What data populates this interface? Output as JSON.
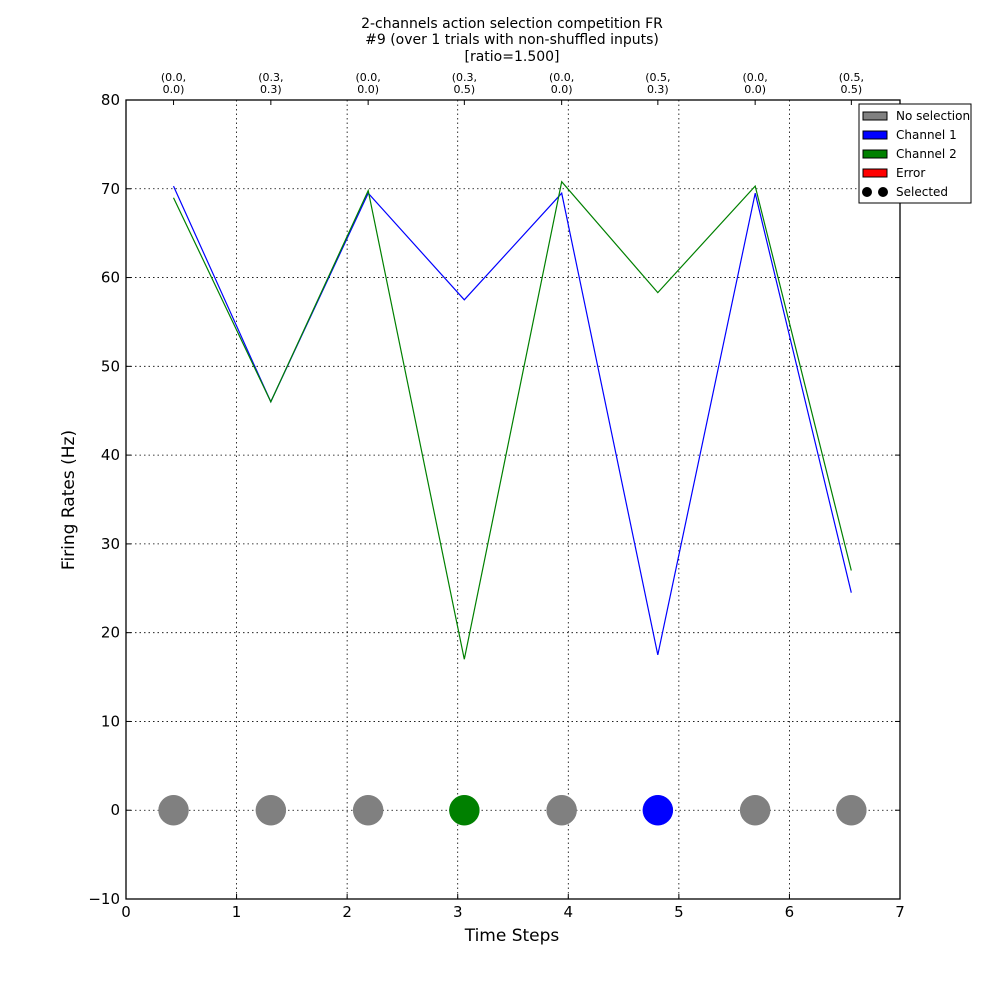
{
  "chart_data": {
    "type": "line",
    "title_lines": [
      "2-channels action selection competition FR",
      "#9 (over 1 trials with non-shuffled inputs)",
      "[ratio=1.500]"
    ],
    "xlabel": "Time Steps",
    "ylabel": "Firing Rates (Hz)",
    "xlim": [
      0,
      7
    ],
    "ylim": [
      -10,
      80
    ],
    "xticks": [
      0,
      1,
      2,
      3,
      4,
      5,
      6,
      7
    ],
    "yticks": [
      -10,
      0,
      10,
      20,
      30,
      40,
      50,
      60,
      70,
      80
    ],
    "ytick_labels": [
      "−10",
      "0",
      "10",
      "20",
      "30",
      "40",
      "50",
      "60",
      "70",
      "80"
    ],
    "grid": true,
    "legend_position": "top-right",
    "x": [
      0.43,
      1.31,
      2.19,
      3.06,
      3.94,
      4.81,
      5.69,
      6.56
    ],
    "top_tick_labels": [
      [
        "(0.0,",
        "0.0)"
      ],
      [
        "(0.3,",
        "0.3)"
      ],
      [
        "(0.0,",
        "0.0)"
      ],
      [
        "(0.3,",
        "0.5)"
      ],
      [
        "(0.0,",
        "0.0)"
      ],
      [
        "(0.5,",
        "0.3)"
      ],
      [
        "(0.0,",
        "0.0)"
      ],
      [
        "(0.5,",
        "0.5)"
      ]
    ],
    "series": [
      {
        "name": "Channel 1",
        "color": "#0000ff",
        "values": [
          70.3,
          46.0,
          69.5,
          57.5,
          69.5,
          17.5,
          69.5,
          24.5
        ]
      },
      {
        "name": "Channel 2",
        "color": "#008000",
        "values": [
          69.0,
          46.0,
          69.8,
          17.0,
          70.8,
          58.3,
          70.3,
          27.0
        ]
      }
    ],
    "selection": {
      "y": 0,
      "colors": [
        "#808080",
        "#808080",
        "#808080",
        "#008000",
        "#808080",
        "#0000ff",
        "#808080",
        "#808080"
      ]
    },
    "legend": [
      {
        "label": "No selection",
        "color": "#808080",
        "kind": "rect"
      },
      {
        "label": "Channel 1",
        "color": "#0000ff",
        "kind": "rect"
      },
      {
        "label": "Channel 2",
        "color": "#008000",
        "kind": "rect"
      },
      {
        "label": "Error",
        "color": "#ff0000",
        "kind": "rect"
      },
      {
        "label": "Selected",
        "color": "#000000",
        "kind": "dots"
      }
    ]
  }
}
